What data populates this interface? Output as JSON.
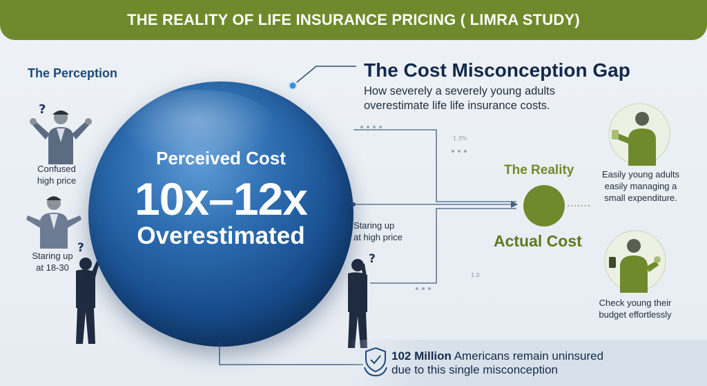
{
  "banner": {
    "title": "THE REALITY OF LIFE INSURANCE PRICING ( LIMRA STUDY)"
  },
  "perception": {
    "title": "The Perception",
    "captions": [
      "Confused\nhigh price",
      "Staring up\nat 18-30"
    ]
  },
  "sphere": {
    "label": "Perceived Cost",
    "big": "10x–12x",
    "sub": "Overestimated"
  },
  "gap": {
    "title": "The Cost Misconception Gap",
    "subtitle_line1": "How severely a severely young adults",
    "subtitle_line2": "overestimate life life insurance costs."
  },
  "middle": {
    "caption": "Staring up\nat high price",
    "tick_top": "1.3%",
    "tick_bottom": "1.0"
  },
  "reality": {
    "title": "The Reality",
    "actual": "Actual Cost",
    "caption_top": "Easily young adults\neasily managing a\nsmall expenditure.",
    "caption_bottom": "Check young their\nbudget effortlessly"
  },
  "footer": {
    "bold": "102 Million",
    "rest_line1": " Americans remain uninsured",
    "line2": "due to this single misconception"
  },
  "colors": {
    "banner": "#6f8a2c",
    "sphere": "#184d8e",
    "accent_green": "#6f8a2c",
    "title_navy": "#13294b"
  },
  "icons": [
    "question-mark-icon",
    "shield-hands-icon",
    "arrow-icon"
  ]
}
